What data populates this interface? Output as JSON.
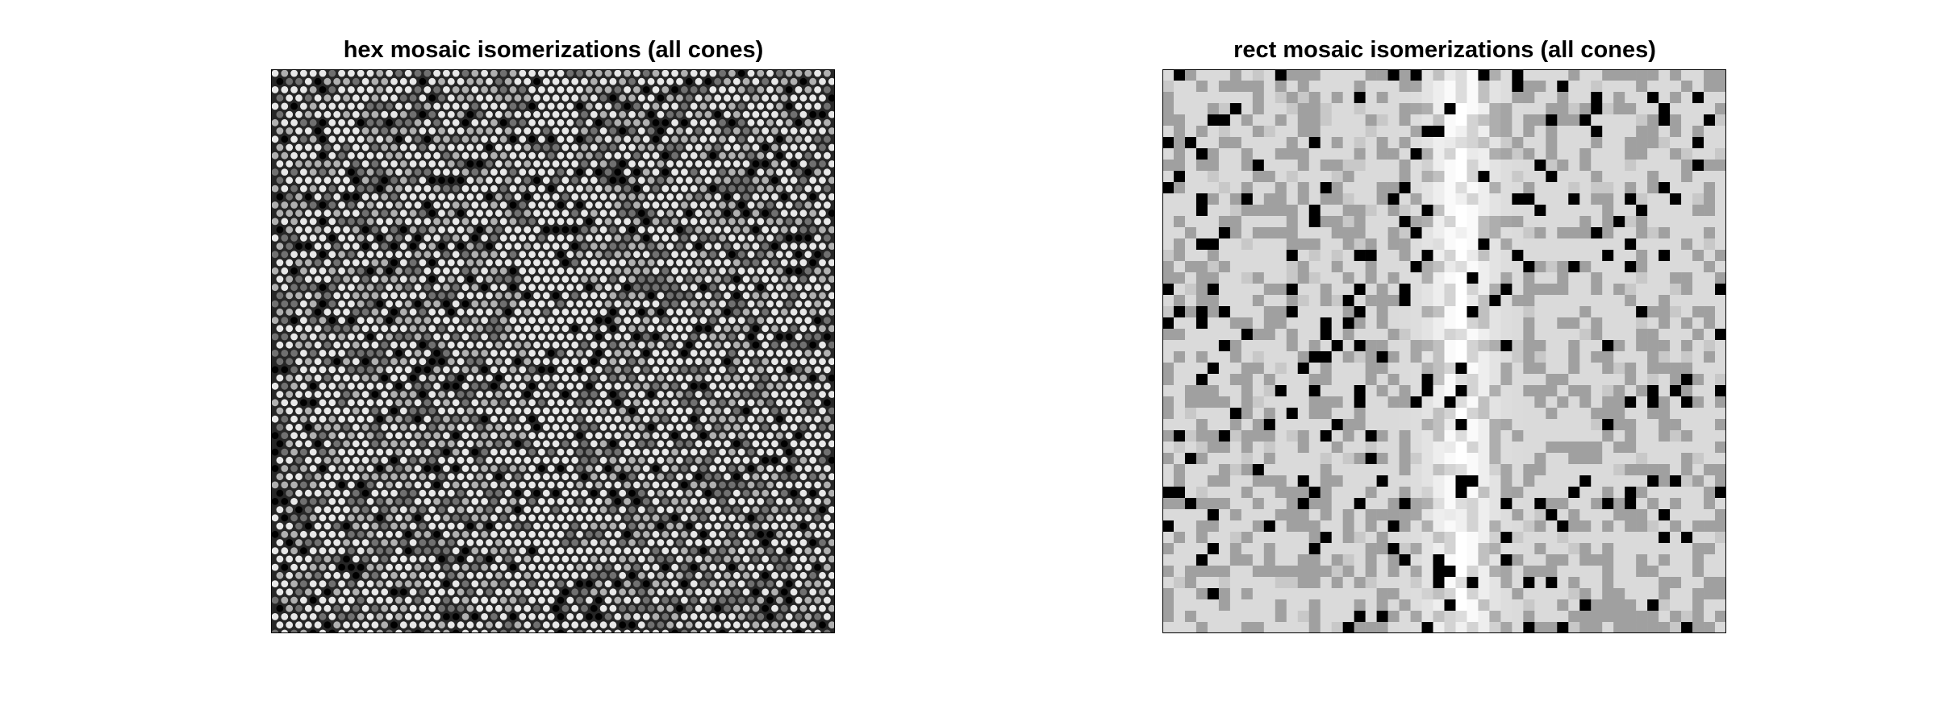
{
  "figure": {
    "left_panel": {
      "title": "hex mosaic isomerizations (all cones)",
      "mosaic": "hex",
      "background_color": "#262626",
      "frame_color": "#000000",
      "cone_levels": [
        "#000000",
        "#707070",
        "#b0b0b0",
        "#e8e8e8"
      ]
    },
    "right_panel": {
      "title": "rect mosaic isomerizations (all cones)",
      "mosaic": "rect",
      "frame_color": "#000000",
      "cone_levels": [
        "#000000",
        "#a0a0a0",
        "#c8c8c8",
        "#dadada",
        "#ffffff"
      ]
    }
  }
}
